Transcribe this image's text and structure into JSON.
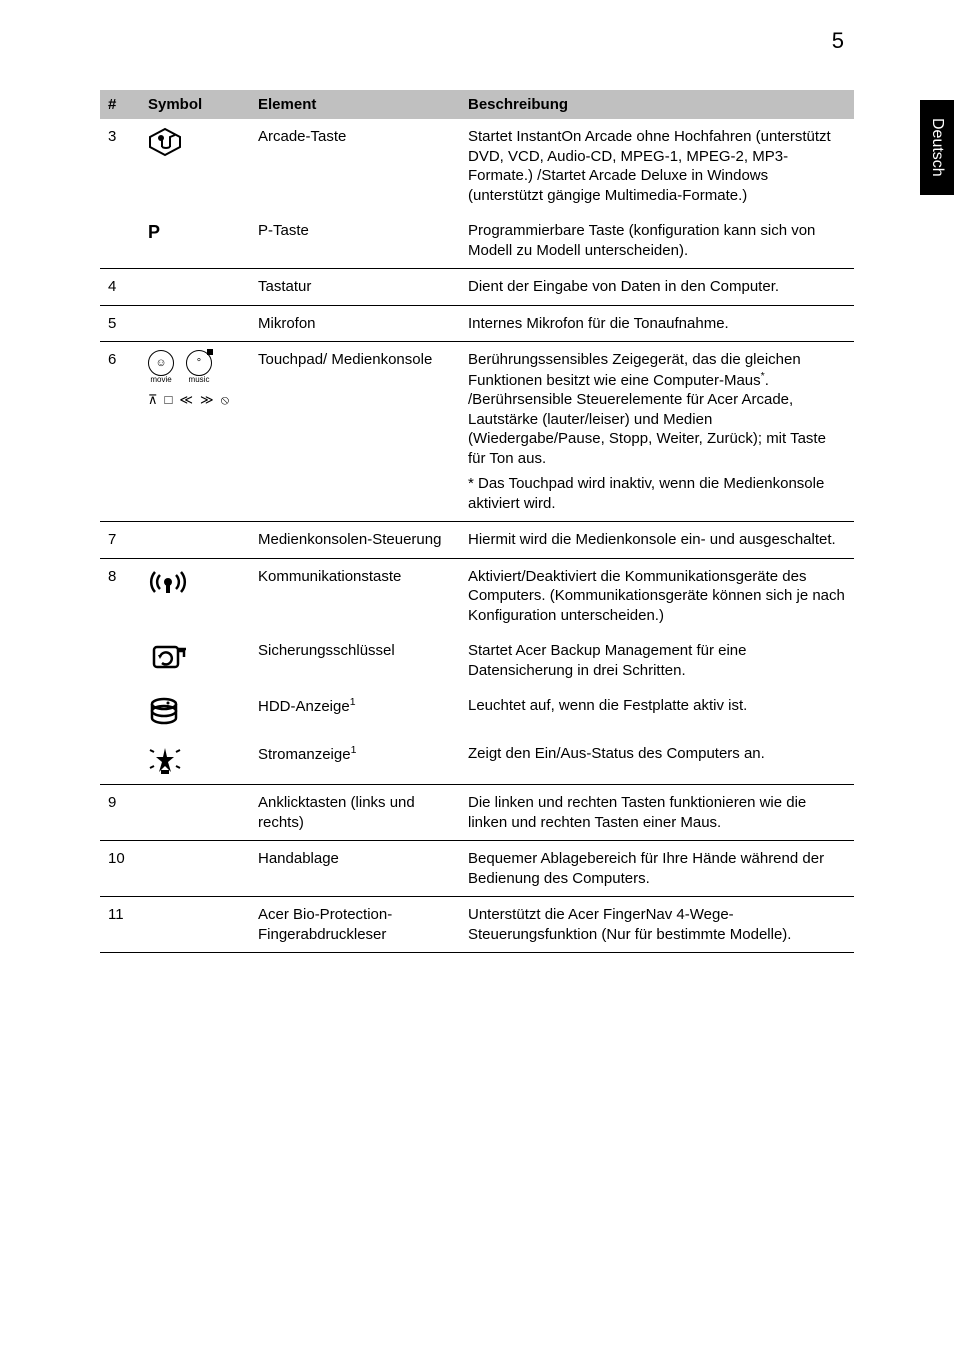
{
  "page_number": "5",
  "side_tab": "Deutsch",
  "headers": {
    "num": "#",
    "symbol": "Symbol",
    "element": "Element",
    "desc": "Beschreibung"
  },
  "rows": [
    {
      "num": "3",
      "symbol": "arcade",
      "element": "Arcade-Taste",
      "desc": "Startet InstantOn Arcade ohne Hochfahren (unterstützt DVD, VCD, Audio-CD, MPEG-1, MPEG-2, MP3-Formate.) /Startet Arcade Deluxe in Windows (unterstützt gängige Multimedia-Formate.)",
      "sep": false
    },
    {
      "num": "",
      "symbol": "P",
      "element": "P-Taste",
      "desc": "Programmierbare Taste (konfiguration kann sich von Modell zu Modell unterscheiden).",
      "sep": true
    },
    {
      "num": "4",
      "symbol": "",
      "element": "Tastatur",
      "desc": "Dient der Eingabe von Daten in den Computer.",
      "sep": true
    },
    {
      "num": "5",
      "symbol": "",
      "element": "Mikrofon",
      "desc": "Internes Mikrofon für die Tonaufnahme.",
      "sep": true
    },
    {
      "num": "6",
      "symbol": "media",
      "element": "Touchpad/ Medienkonsole",
      "desc": "Berührungssensibles Zeigegerät, das die gleichen Funktionen besitzt wie eine Computer-Maus*. /Berührsensible Steuerelemente für Acer Arcade, Lautstärke (lauter/leiser) und Medien (Wiedergabe/Pause, Stopp, Weiter, Zurück); mit Taste für Ton aus.\n* Das Touchpad wird inaktiv, wenn die Medienkonsole aktiviert wird.",
      "sep": true
    },
    {
      "num": "7",
      "symbol": "",
      "element": "Medienkonsolen-Steuerung",
      "desc": "Hiermit wird die Medienkonsole ein- und ausgeschaltet.",
      "sep": true
    },
    {
      "num": "8",
      "symbol": "wireless",
      "element": "Kommunikationstaste",
      "desc": "Aktiviert/Deaktiviert die Kommunikationsgeräte des Computers. (Kommunikationsgeräte können sich je nach Konfiguration unterscheiden.)",
      "sep": false
    },
    {
      "num": "",
      "symbol": "backup",
      "element": "Sicherungsschlüssel",
      "desc": "Startet Acer Backup Management für eine Datensicherung in drei Schritten.",
      "sep": false
    },
    {
      "num": "",
      "symbol": "hdd",
      "element": "HDD-Anzeige",
      "desc": "Leuchtet auf, wenn die Festplatte aktiv ist.",
      "sup": "1",
      "sep": false
    },
    {
      "num": "",
      "symbol": "power",
      "element": "Stromanzeige",
      "desc": "Zeigt den Ein/Aus-Status des Computers an.",
      "sup": "1",
      "sep": true
    },
    {
      "num": "9",
      "symbol": "",
      "element": "Anklicktasten (links und rechts)",
      "desc": "Die linken und rechten Tasten funktionieren wie die linken und rechten Tasten einer Maus.",
      "sep": true
    },
    {
      "num": "10",
      "symbol": "",
      "element": "Handablage",
      "desc": "Bequemer Ablagebereich für Ihre Hände während der Bedienung des Computers.",
      "sep": true
    },
    {
      "num": "11",
      "symbol": "",
      "element": "Acer Bio-Protection-Fingerabdruckleser",
      "desc": "Unterstützt die Acer FingerNav 4-Wege-Steuerungsfunktion (Nur für bestimmte Modelle).",
      "sep": true
    }
  ],
  "media_sublabels": {
    "movie": "movie",
    "music": "music"
  }
}
